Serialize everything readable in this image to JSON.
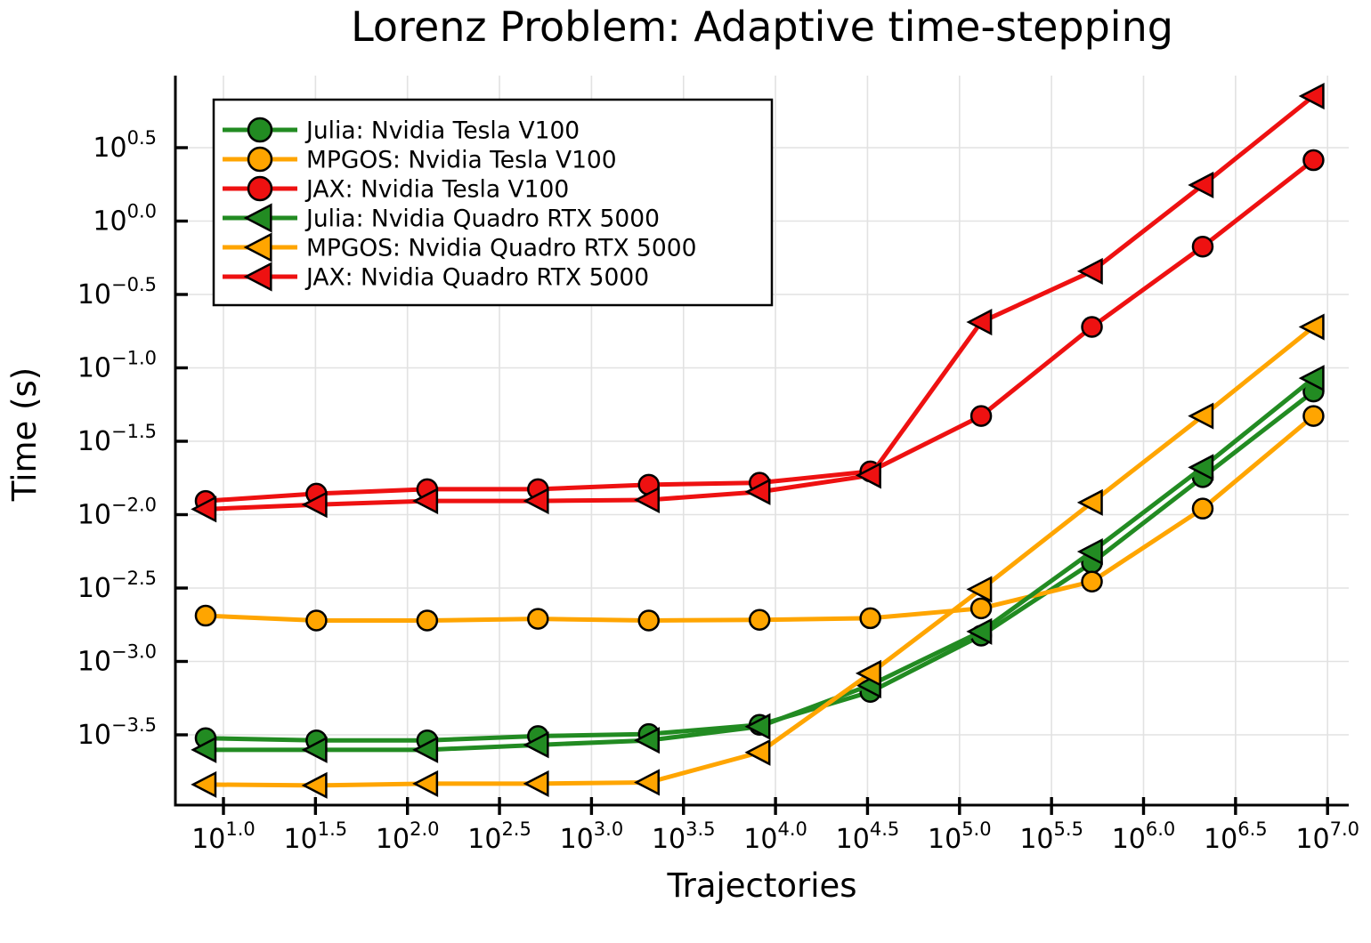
{
  "figure": {
    "background": "#ffffff",
    "grid_color": "#e2e2e2",
    "spine_color": "#000000"
  },
  "chart_data": {
    "type": "line",
    "title": "Lorenz Problem: Adaptive time-stepping",
    "xlabel": "Trajectories",
    "ylabel": "Time (s)",
    "x_scale": "log10",
    "y_scale": "log10",
    "grid": true,
    "legend_position": "top-left",
    "xlim_log": [
      0.74,
      7.12
    ],
    "ylim_log": [
      -3.98,
      0.97
    ],
    "x_tick_exponents": [
      1.0,
      1.5,
      2.0,
      2.5,
      3.0,
      3.5,
      4.0,
      4.5,
      5.0,
      5.5,
      6.0,
      6.5,
      7.0
    ],
    "y_tick_exponents": [
      0.5,
      0.0,
      -0.5,
      -1.0,
      -1.5,
      -2.0,
      -2.5,
      -3.0,
      -3.5
    ],
    "x": [
      8,
      32,
      128,
      512,
      2048,
      8192,
      32768,
      131072,
      524288,
      2097152,
      8388608
    ],
    "series": [
      {
        "name": "Julia: Nvidia Tesla V100",
        "color": "#228B22",
        "marker": "circle",
        "values": [
          0.0003,
          0.00029,
          0.00029,
          0.00031,
          0.00032,
          0.00037,
          0.00062,
          0.0015,
          0.0047,
          0.018,
          0.069
        ]
      },
      {
        "name": "MPGOS: Nvidia Tesla V100",
        "color": "#FFA500",
        "marker": "circle",
        "values": [
          0.00205,
          0.0019,
          0.0019,
          0.00195,
          0.0019,
          0.00192,
          0.00197,
          0.0023,
          0.0035,
          0.011,
          0.047
        ]
      },
      {
        "name": "JAX: Nvidia Tesla V100",
        "color": "#EE1111",
        "marker": "circle",
        "values": [
          0.0124,
          0.0139,
          0.0149,
          0.0149,
          0.016,
          0.0165,
          0.0197,
          0.047,
          0.19,
          0.67,
          2.6
        ]
      },
      {
        "name": "Julia: Nvidia Quadro RTX 5000",
        "color": "#228B22",
        "marker": "triangle-left",
        "values": [
          0.00025,
          0.00025,
          0.00025,
          0.00027,
          0.00029,
          0.00036,
          0.00069,
          0.0016,
          0.0056,
          0.021,
          0.085
        ]
      },
      {
        "name": "MPGOS: Nvidia Quadro RTX 5000",
        "color": "#FFA500",
        "marker": "triangle-left",
        "values": [
          0.000145,
          0.000143,
          0.000147,
          0.000147,
          0.00015,
          0.00024,
          0.00083,
          0.0031,
          0.0121,
          0.047,
          0.19
        ]
      },
      {
        "name": "JAX: Nvidia Quadro RTX 5000",
        "color": "#EE1111",
        "marker": "triangle-left",
        "values": [
          0.0109,
          0.0117,
          0.0124,
          0.0124,
          0.0126,
          0.0143,
          0.0185,
          0.205,
          0.455,
          1.76,
          7.1
        ]
      }
    ]
  }
}
